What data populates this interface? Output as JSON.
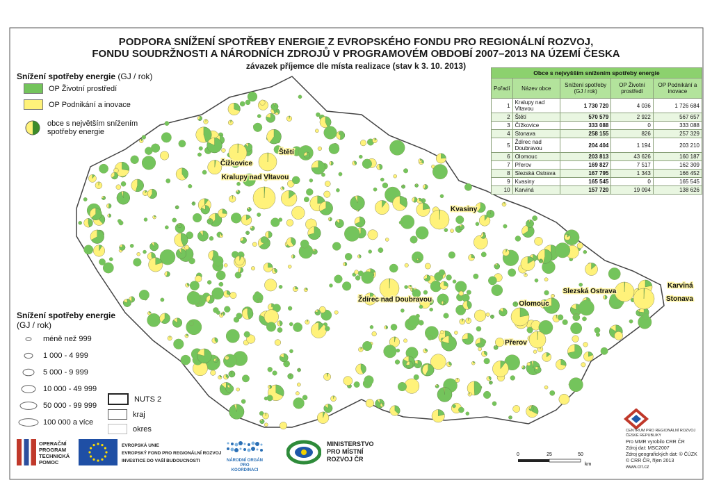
{
  "header": {
    "title_line1": "PODPORA SNÍŽENÍ SPOTŘEBY ENERGIE Z EVROPSKÉHO FONDU PRO REGIONÁLNÍ ROZVOJ,",
    "title_line2": "FONDU SOUDRŽNOSTI A NÁRODNÍCH ZDROJŮ V PROGRAMOVÉM OBDOBÍ 2007–2013 NA ÚZEMÍ ČESKA",
    "subtitle": "závazek příjemce dle místa realizace (stav k 3. 10. 2013)"
  },
  "legend": {
    "title": "Snížení spotřeby energie",
    "unit": "(GJ / rok)",
    "items": [
      "OP Životní prostředí",
      "OP Podnikání a inovace",
      "obce s největším snížením spotřeby energie"
    ]
  },
  "size_legend": {
    "title": "Snížení spotřeby energie",
    "unit": "(GJ / rok)",
    "classes": [
      "méně než 999",
      "1 000 - 4 999",
      "5 000 - 9 999",
      "10 000 - 49 999",
      "50 000 - 99 999",
      "100 000 a více"
    ]
  },
  "boundaries": [
    "NUTS 2",
    "kraj",
    "okres"
  ],
  "table": {
    "title": "Obce s nejvyšším snížením spotřeby energie",
    "headers": [
      "Pořadí",
      "Název obce",
      "Snížení spotřeby (GJ / rok)",
      "OP Životní prostředí",
      "OP Podnikání a inovace"
    ],
    "rows": [
      [
        1,
        "Kralupy nad Vltavou",
        "1 730 720",
        "4 036",
        "1 726 684"
      ],
      [
        2,
        "Štětí",
        "570 579",
        "2 922",
        "567 657"
      ],
      [
        3,
        "Čížkovice",
        "333 088",
        "0",
        "333 088"
      ],
      [
        4,
        "Stonava",
        "258 155",
        "826",
        "257 329"
      ],
      [
        5,
        "Ždírec nad Doubravou",
        "204 404",
        "1 194",
        "203 210"
      ],
      [
        6,
        "Olomouc",
        "203 813",
        "43 626",
        "160 187"
      ],
      [
        7,
        "Přerov",
        "169 827",
        "7 517",
        "162 309"
      ],
      [
        8,
        "Slezská Ostrava",
        "167 795",
        "1 343",
        "166 452"
      ],
      [
        9,
        "Kvasiny",
        "165 545",
        "0",
        "165 545"
      ],
      [
        10,
        "Karviná",
        "157 720",
        "19 094",
        "138 626"
      ]
    ]
  },
  "map_labels": [
    "Čížkovice",
    "Štětí",
    "Kralupy nad Vltavou",
    "Kvasiny",
    "Ždírec nad Doubravou",
    "Olomouc",
    "Přerov",
    "Slezská Ostrava",
    "Karviná",
    "Stonava"
  ],
  "scale": {
    "ticks": [
      "0",
      "25",
      "50"
    ],
    "unit": "km"
  },
  "logos": {
    "optp": [
      "OPERAČNÍ",
      "PROGRAM",
      "TECHNICKÁ",
      "POMOC"
    ],
    "eu": [
      "EVROPSKÁ UNIE",
      "EVROPSKÝ FOND PRO REGIONÁLNÍ ROZVOJ",
      "INVESTICE DO VAŠÍ BUDOUCNOSTI"
    ],
    "nok": [
      "NÁRODNÍ ORGÁN",
      "PRO KOORDINACI"
    ],
    "mmr": [
      "MINISTERSTVO",
      "PRO MÍSTNÍ",
      "ROZVOJ ČR"
    ],
    "crr": [
      "CENTRUM PRO REGIONÁLNÍ ROZVOJ",
      "ČESKÉ REPUBLIKY"
    ]
  },
  "credits": [
    "Pro MMR vyrobilo CRR ČR",
    "Zdroj dat: MSC2007",
    "Zdroj geografických dat: © ČÚZK",
    "© CRR ČR, říjen 2013",
    "www.crr.cz"
  ]
}
